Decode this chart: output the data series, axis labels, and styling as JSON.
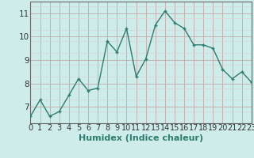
{
  "x": [
    0,
    1,
    2,
    3,
    4,
    5,
    6,
    7,
    8,
    9,
    10,
    11,
    12,
    13,
    14,
    15,
    16,
    17,
    18,
    19,
    20,
    21,
    22,
    23
  ],
  "y": [
    6.6,
    7.3,
    6.6,
    6.8,
    7.5,
    8.2,
    7.7,
    7.8,
    9.8,
    9.35,
    10.35,
    8.3,
    9.05,
    10.5,
    11.1,
    10.6,
    10.35,
    9.65,
    9.65,
    9.5,
    8.6,
    8.2,
    8.5,
    8.05
  ],
  "xlabel": "Humidex (Indice chaleur)",
  "ylim": [
    6.3,
    11.5
  ],
  "xlim": [
    0,
    23
  ],
  "yticks": [
    7,
    8,
    9,
    10,
    11
  ],
  "xticks": [
    0,
    1,
    2,
    3,
    4,
    5,
    6,
    7,
    8,
    9,
    10,
    11,
    12,
    13,
    14,
    15,
    16,
    17,
    18,
    19,
    20,
    21,
    22,
    23
  ],
  "line_color": "#2e7d6e",
  "bg_color": "#ceecea",
  "grid_major_color": "#c4a8a8",
  "grid_minor_color": "#ddd0d0",
  "xlabel_fontsize": 8,
  "tick_fontsize": 7,
  "xlabel_color": "#2e7d6e"
}
